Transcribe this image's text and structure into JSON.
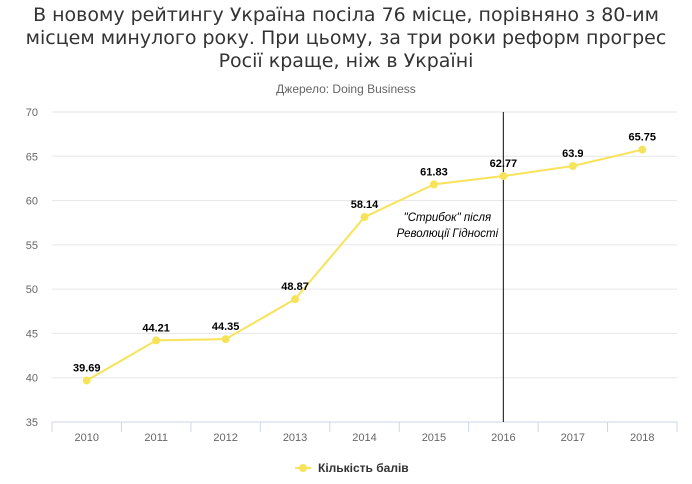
{
  "chart_data": {
    "type": "line",
    "title": "В новому рейтингу Україна посіла 76 місце, порівняно з 80-им місцем минулого року. При цьому, за три роки реформ прогрес Росії краще, ніж в Україні",
    "subtitle": "Джерело: Doing Business",
    "categories": [
      "2010",
      "2011",
      "2012",
      "2013",
      "2014",
      "2015",
      "2016",
      "2017",
      "2018"
    ],
    "series": [
      {
        "name": "Кількість балів",
        "values": [
          39.69,
          44.21,
          44.35,
          48.87,
          58.14,
          61.83,
          62.77,
          63.9,
          65.75
        ],
        "color": "#f7e35a"
      }
    ],
    "data_labels": [
      "39.69",
      "44.21",
      "44.35",
      "48.87",
      "58.14",
      "61.83",
      "62.77",
      "63.9",
      "65.75"
    ],
    "ylim": [
      35,
      70
    ],
    "yticks": [
      "35",
      "40",
      "45",
      "50",
      "55",
      "60",
      "65",
      "70"
    ],
    "annotation": {
      "category": "2016",
      "line1": "\"Стрибок\" після",
      "line2": "Революції Гідності"
    },
    "grid": true,
    "legend": "bottom-center"
  }
}
